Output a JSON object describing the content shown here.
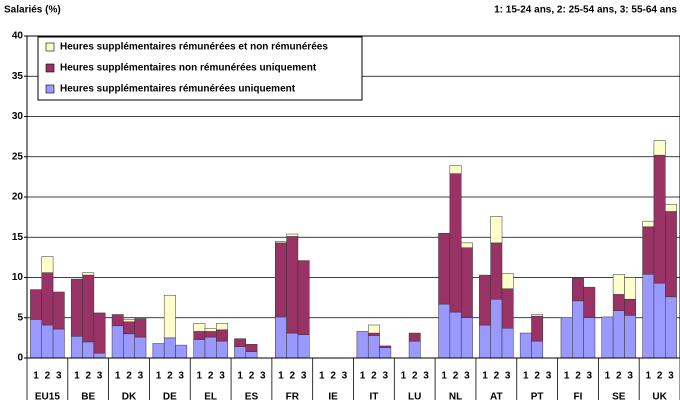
{
  "chart_data": {
    "type": "stacked-bar",
    "title": "Salariés (%)",
    "subtitle": "1: 15-24 ans, 2: 25-54 ans, 3: 55-64 ans",
    "groups": [
      "EU15",
      "BE",
      "DK",
      "DE",
      "EL",
      "ES",
      "FR",
      "IE",
      "IT",
      "LU",
      "NL",
      "AT",
      "PT",
      "FI",
      "SE",
      "UK"
    ],
    "subcategories": [
      "1",
      "2",
      "3"
    ],
    "series": [
      {
        "name": "Heures supplémentaires rémunérées uniquement",
        "color": "#9999ff",
        "values": [
          4.8,
          4.1,
          3.6,
          2.7,
          2.0,
          0.6,
          4.0,
          3.0,
          2.6,
          1.8,
          2.5,
          1.6,
          2.3,
          2.6,
          2.1,
          1.4,
          0.8,
          0,
          5.1,
          3.1,
          2.9,
          0,
          0,
          0,
          3.3,
          2.8,
          1.3,
          0,
          2.1,
          0,
          6.7,
          5.7,
          5.0,
          4.1,
          7.3,
          3.7,
          3.1,
          2.1,
          0,
          5.0,
          7.1,
          5.0,
          5.1,
          5.9,
          5.3,
          10.4,
          9.3,
          7.6
        ]
      },
      {
        "name": "Heures supplémentaires non rémunérées uniquement",
        "color": "#993366",
        "values": [
          3.7,
          6.5,
          4.6,
          7.1,
          8.3,
          5.0,
          1.4,
          1.5,
          2.3,
          0,
          0,
          0,
          1.0,
          0.7,
          1.4,
          1.0,
          0.9,
          0,
          9.2,
          12.0,
          9.2,
          0,
          0,
          0,
          0,
          0.3,
          0.2,
          0,
          1.0,
          0,
          8.8,
          17.2,
          8.7,
          6.2,
          7.0,
          4.9,
          0,
          3.1,
          0,
          0,
          2.8,
          3.8,
          0,
          2.0,
          2.0,
          5.9,
          15.9,
          10.6
        ]
      },
      {
        "name": "Heures supplémentaires rémunérées et non rémunérées",
        "color": "#ffffcc",
        "values": [
          0,
          2.0,
          0,
          0,
          0.3,
          0,
          0,
          0.3,
          0,
          0,
          5.3,
          0,
          1.0,
          0.4,
          0.8,
          0,
          0,
          0,
          0.2,
          0.3,
          0,
          0,
          0,
          0,
          0,
          1.0,
          0,
          0,
          0,
          0,
          0,
          1.0,
          0.6,
          0,
          3.3,
          1.9,
          0,
          0.2,
          0,
          0,
          0,
          0,
          0,
          2.5,
          2.7,
          0.7,
          1.8,
          0.9
        ]
      }
    ],
    "ylim": [
      0,
      40
    ],
    "yticks": [
      0,
      5,
      10,
      15,
      20,
      25,
      30,
      35,
      40
    ],
    "grid": true,
    "legend": "top-left"
  }
}
